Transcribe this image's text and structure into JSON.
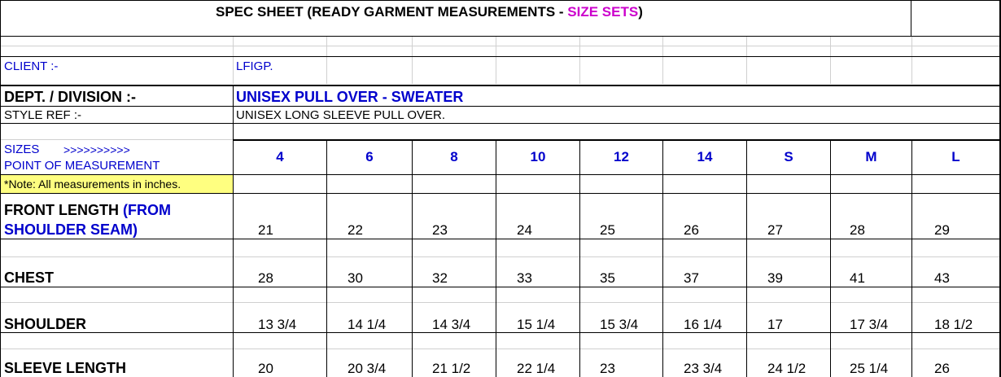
{
  "title": {
    "main": "SPEC SHEET (READY GARMENT MEASUREMENTS - ",
    "highlight": "SIZE SETS",
    "close": ")",
    "highlight_color": "#cc00cc"
  },
  "client": {
    "label": "CLIENT :-",
    "value": "LFIGP."
  },
  "department": {
    "label": "DEPT. / DIVISION :-",
    "value": "UNISEX PULL OVER - SWEATER"
  },
  "style_ref": {
    "label": "STYLE REF :-",
    "value": "UNISEX LONG SLEEVE PULL OVER."
  },
  "sizes_header": {
    "label": "SIZES",
    "arrows": ">>>>>>>>>>",
    "point_label": "POINT OF MEASUREMENT",
    "sizes": [
      "4",
      "6",
      "8",
      "10",
      "12",
      "14",
      "S",
      "M",
      "L"
    ]
  },
  "note": {
    "text": "*Note: All measurements in inches.",
    "bg_color": "#ffff80"
  },
  "measurements": [
    {
      "label_part1": "FRONT LENGTH  ",
      "label_part2": "(FROM",
      "label_line2": "SHOULDER SEAM)",
      "values": [
        "21",
        "22",
        "23",
        "24",
        "25",
        "26",
        "27",
        "28",
        "29"
      ]
    },
    {
      "label": "CHEST",
      "values": [
        "28",
        "30",
        "32",
        "33",
        "35",
        "37",
        "39",
        "41",
        "43"
      ]
    },
    {
      "label": "SHOULDER",
      "values": [
        "13 3/4",
        "14 1/4",
        "14 3/4",
        "15 1/4",
        "15 3/4",
        "16 1/4",
        "17",
        "17 3/4",
        "18 1/2"
      ]
    },
    {
      "label": "SLEEVE LENGTH",
      "values": [
        "20",
        "20 3/4",
        "21 1/2",
        "22 1/4",
        "23",
        "23 3/4",
        "24 1/2",
        "25 1/4",
        "26"
      ]
    }
  ],
  "colors": {
    "accent_blue": "#0000cc",
    "grid_light": "#d0d0d0"
  }
}
